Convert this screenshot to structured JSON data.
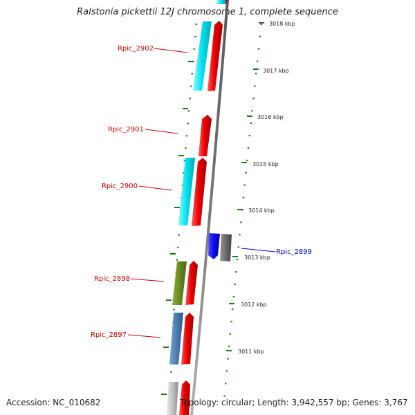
{
  "title": "Ralstonia pickettii 12J chromosome 1, complete sequence",
  "accession": "Accession: NC_010682",
  "summary": "Topology: circular; Length: 3,942,557 bp; Genes: 3,767",
  "colors": {
    "backbone": "#888888",
    "tick": "#1a7a1a",
    "forward_label": "#cc0000",
    "reverse_label": "#0000cc"
  },
  "scale_ticks": [
    {
      "label": "3018 kbp"
    },
    {
      "label": "3017 kbp"
    },
    {
      "label": "3016 kbp"
    },
    {
      "label": "3015 kbp"
    },
    {
      "label": "3014 kbp"
    },
    {
      "label": "3013 kbp"
    },
    {
      "label": "3012 kbp"
    },
    {
      "label": "3011 kbp"
    }
  ],
  "gene_labels": [
    {
      "name": "Rpic_2902",
      "strand": "forward"
    },
    {
      "name": "Rpic_2901",
      "strand": "forward"
    },
    {
      "name": "Rpic_2900",
      "strand": "forward"
    },
    {
      "name": "Rpic_2899",
      "strand": "reverse"
    },
    {
      "name": "Rpic_2898",
      "strand": "forward"
    },
    {
      "name": "Rpic_2897",
      "strand": "forward"
    }
  ]
}
